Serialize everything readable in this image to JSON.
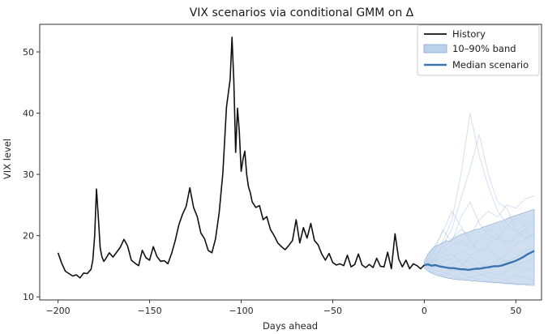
{
  "chart_data": {
    "type": "line",
    "title": "VIX scenarios via conditional GMM on Δ",
    "xlabel": "Days ahead",
    "ylabel": "VIX level",
    "xlim": [
      -210,
      64
    ],
    "ylim": [
      9.5,
      54.5
    ],
    "xticks": [
      -200,
      -150,
      -100,
      -50,
      0,
      50
    ],
    "yticks": [
      10,
      20,
      30,
      40,
      50
    ],
    "grid": false,
    "legend_position": "top-right",
    "legend": [
      "History",
      "10–90% band",
      "Median scenario"
    ],
    "colors": {
      "history": "#111111",
      "band": "#bcd1ea",
      "band_edge": "#8aa8cf",
      "median": "#3a74b0",
      "paths": "#9fbbe0"
    },
    "history": {
      "name": "History",
      "x": [
        -200,
        -198,
        -196,
        -194,
        -192,
        -190,
        -188,
        -186,
        -184,
        -182,
        -181,
        -180,
        -179,
        -178,
        -177,
        -176,
        -175,
        -174,
        -172,
        -170,
        -168,
        -166,
        -164,
        -162,
        -160,
        -158,
        -156,
        -154,
        -152,
        -150,
        -148,
        -146,
        -144,
        -142,
        -140,
        -138,
        -136,
        -134,
        -132,
        -130,
        -128,
        -126,
        -124,
        -122,
        -120,
        -118,
        -116,
        -114,
        -112,
        -110,
        -108,
        -106,
        -105,
        -104,
        -103,
        -102,
        -101,
        -100,
        -99,
        -98,
        -97,
        -96,
        -95,
        -94,
        -92,
        -90,
        -88,
        -86,
        -84,
        -82,
        -80,
        -78,
        -76,
        -74,
        -72,
        -70,
        -68,
        -66,
        -64,
        -62,
        -60,
        -58,
        -56,
        -54,
        -52,
        -50,
        -48,
        -46,
        -44,
        -42,
        -40,
        -38,
        -36,
        -34,
        -32,
        -30,
        -28,
        -26,
        -24,
        -22,
        -20,
        -18,
        -16,
        -14,
        -12,
        -10,
        -8,
        -6,
        -4,
        -2,
        0
      ],
      "y": [
        17.2,
        15.5,
        14.2,
        13.8,
        13.4,
        13.6,
        13.1,
        13.9,
        13.8,
        14.5,
        16.0,
        20.0,
        27.6,
        23.0,
        18.0,
        16.5,
        15.8,
        16.2,
        17.2,
        16.5,
        17.3,
        18.1,
        19.4,
        18.3,
        16.0,
        15.5,
        15.1,
        17.6,
        16.4,
        16.0,
        18.2,
        16.6,
        15.8,
        15.9,
        15.4,
        17.1,
        19.2,
        21.8,
        23.5,
        24.8,
        27.8,
        24.6,
        23.1,
        20.4,
        19.5,
        17.6,
        17.2,
        19.5,
        23.8,
        30.2,
        41.0,
        45.5,
        52.4,
        45.0,
        33.6,
        40.8,
        37.0,
        30.5,
        32.5,
        33.8,
        30.0,
        28.0,
        27.0,
        25.5,
        24.6,
        24.9,
        22.6,
        23.1,
        21.0,
        20.0,
        18.8,
        18.2,
        17.7,
        18.4,
        19.2,
        22.6,
        18.8,
        21.3,
        19.6,
        22.0,
        19.2,
        18.5,
        17.0,
        16.0,
        17.1,
        15.6,
        15.2,
        15.4,
        15.1,
        16.8,
        14.9,
        15.3,
        17.0,
        15.2,
        14.8,
        15.3,
        14.8,
        16.3,
        15.0,
        14.9,
        17.3,
        14.6,
        20.3,
        16.2,
        14.9,
        16.0,
        14.6,
        15.4,
        15.1,
        14.6,
        15.2
      ]
    },
    "median": {
      "name": "Median scenario",
      "x": [
        0,
        2,
        4,
        6,
        8,
        10,
        12,
        14,
        16,
        18,
        20,
        22,
        24,
        26,
        28,
        30,
        32,
        34,
        36,
        38,
        40,
        42,
        44,
        46,
        48,
        50,
        52,
        54,
        56,
        58,
        60
      ],
      "y": [
        15.2,
        15.3,
        15.1,
        15.2,
        15.0,
        14.9,
        14.8,
        14.7,
        14.7,
        14.6,
        14.5,
        14.5,
        14.4,
        14.5,
        14.6,
        14.6,
        14.7,
        14.8,
        14.9,
        15.0,
        15.0,
        15.1,
        15.3,
        15.5,
        15.7,
        15.9,
        16.2,
        16.5,
        16.9,
        17.2,
        17.5
      ]
    },
    "band": {
      "name": "10–90% band",
      "x": [
        0,
        2,
        4,
        6,
        8,
        10,
        12,
        14,
        16,
        18,
        20,
        22,
        24,
        26,
        28,
        30,
        32,
        34,
        36,
        38,
        40,
        42,
        44,
        46,
        48,
        50,
        52,
        54,
        56,
        58,
        60
      ],
      "low": [
        14.7,
        14.2,
        13.9,
        13.6,
        13.4,
        13.3,
        13.1,
        13.0,
        12.9,
        12.8,
        12.8,
        12.7,
        12.7,
        12.6,
        12.6,
        12.5,
        12.5,
        12.4,
        12.4,
        12.3,
        12.3,
        12.3,
        12.2,
        12.2,
        12.2,
        12.1,
        12.1,
        12.1,
        12.0,
        12.0,
        12.0
      ],
      "high": [
        15.8,
        17.0,
        17.8,
        18.3,
        18.5,
        18.8,
        19.2,
        19.0,
        19.6,
        19.9,
        20.2,
        20.4,
        20.6,
        20.8,
        21.0,
        21.1,
        21.4,
        21.6,
        21.8,
        22.0,
        22.2,
        22.4,
        22.6,
        22.9,
        23.1,
        23.3,
        23.5,
        23.7,
        23.9,
        24.1,
        24.3
      ]
    },
    "scenario_paths": [
      {
        "x": [
          0,
          5,
          10,
          15,
          20,
          25,
          30,
          35,
          40,
          45,
          50,
          55,
          60
        ],
        "y": [
          15.2,
          17.5,
          19.0,
          22.5,
          30.0,
          40.0,
          33.0,
          28.0,
          24.0,
          22.0,
          20.5,
          22.0,
          23.5
        ]
      },
      {
        "x": [
          0,
          5,
          10,
          15,
          20,
          25,
          30,
          35,
          40,
          45,
          50,
          55,
          60
        ],
        "y": [
          15.2,
          16.0,
          18.5,
          21.0,
          26.0,
          31.0,
          36.5,
          30.0,
          25.5,
          24.5,
          21.0,
          19.5,
          20.0
        ]
      },
      {
        "x": [
          0,
          5,
          10,
          15,
          20,
          25,
          30,
          35,
          40,
          45,
          50,
          55,
          60
        ],
        "y": [
          15.2,
          14.5,
          14.0,
          13.5,
          13.0,
          13.2,
          12.8,
          12.5,
          12.4,
          12.1,
          12.0,
          11.9,
          11.8
        ]
      },
      {
        "x": [
          0,
          5,
          10,
          15,
          20,
          25,
          30,
          35,
          40,
          45,
          50,
          55,
          60
        ],
        "y": [
          15.2,
          16.5,
          18.0,
          19.5,
          21.0,
          20.0,
          22.5,
          24.0,
          23.0,
          25.0,
          24.5,
          26.0,
          26.5
        ]
      },
      {
        "x": [
          0,
          5,
          10,
          15,
          20,
          25,
          30,
          35,
          40,
          45,
          50,
          55,
          60
        ],
        "y": [
          15.2,
          15.0,
          14.8,
          15.5,
          16.0,
          15.5,
          14.8,
          15.2,
          16.0,
          17.0,
          18.5,
          19.5,
          20.5
        ]
      },
      {
        "x": [
          0,
          5,
          10,
          15,
          20,
          25,
          30,
          35,
          40,
          45,
          50,
          55,
          60
        ],
        "y": [
          15.2,
          14.0,
          13.5,
          14.5,
          14.0,
          13.2,
          13.5,
          14.0,
          13.6,
          14.2,
          15.0,
          14.5,
          14.8
        ]
      },
      {
        "x": [
          0,
          5,
          10,
          15,
          20,
          25,
          30,
          35,
          40,
          45,
          50,
          55,
          60
        ],
        "y": [
          15.2,
          17.0,
          21.0,
          19.0,
          23.0,
          25.5,
          22.0,
          20.0,
          19.5,
          21.5,
          23.0,
          21.5,
          22.5
        ]
      },
      {
        "x": [
          0,
          5,
          10,
          15,
          20,
          25,
          30,
          35,
          40,
          45,
          50,
          55,
          60
        ],
        "y": [
          15.2,
          15.5,
          16.5,
          17.0,
          15.5,
          14.5,
          13.8,
          13.2,
          13.0,
          12.8,
          13.5,
          13.2,
          12.6
        ]
      },
      {
        "x": [
          0,
          5,
          10,
          15,
          20,
          25,
          30,
          35,
          40,
          45,
          50,
          55,
          60
        ],
        "y": [
          15.2,
          18.0,
          20.5,
          24.0,
          21.5,
          19.0,
          17.5,
          18.0,
          16.5,
          15.8,
          16.5,
          17.5,
          18.0
        ]
      },
      {
        "x": [
          0,
          5,
          10,
          15,
          20,
          25,
          30,
          35,
          40,
          45,
          50,
          55,
          60
        ],
        "y": [
          15.2,
          14.8,
          15.8,
          16.2,
          17.5,
          16.8,
          17.5,
          18.8,
          19.5,
          19.0,
          20.0,
          21.0,
          21.8
        ]
      },
      {
        "x": [
          0,
          5,
          10,
          15,
          20,
          25,
          30,
          35,
          40,
          45,
          50,
          55,
          60
        ],
        "y": [
          15.2,
          16.2,
          15.0,
          14.2,
          15.0,
          16.5,
          15.5,
          14.5,
          15.5,
          16.0,
          15.2,
          15.8,
          16.2
        ]
      },
      {
        "x": [
          0,
          5,
          10,
          15,
          20,
          25,
          30,
          35,
          40,
          45,
          50,
          55,
          60
        ],
        "y": [
          15.2,
          15.8,
          17.2,
          18.5,
          19.0,
          18.0,
          19.5,
          21.0,
          20.0,
          18.5,
          19.5,
          20.5,
          19.8
        ]
      }
    ]
  }
}
